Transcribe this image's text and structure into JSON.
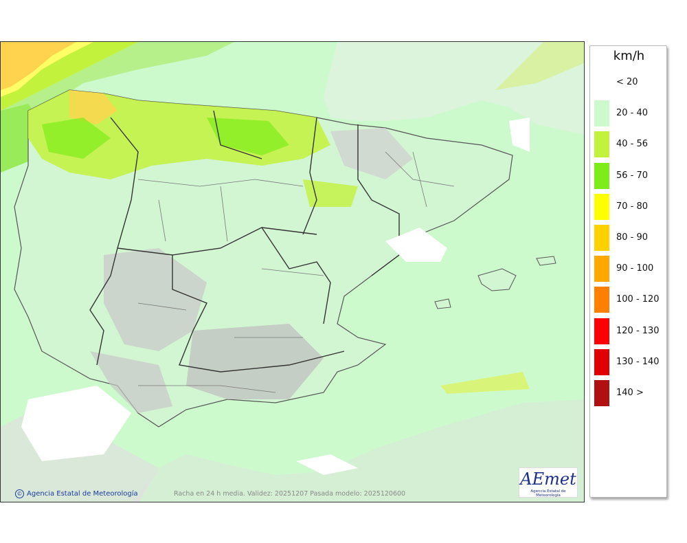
{
  "legend": {
    "title": "km/h",
    "items": [
      {
        "label": "< 20",
        "color": "#ffffff"
      },
      {
        "label": "20 - 40",
        "color": "#cdfacd"
      },
      {
        "label": "40 - 56",
        "color": "#c3f23d"
      },
      {
        "label": "56 - 70",
        "color": "#7ded1a"
      },
      {
        "label": "70 - 80",
        "color": "#ffff00"
      },
      {
        "label": "80 - 90",
        "color": "#ffd100"
      },
      {
        "label": "90 - 100",
        "color": "#ffa800"
      },
      {
        "label": "100 - 120",
        "color": "#ff7f00"
      },
      {
        "label": "120 - 130",
        "color": "#ff0000"
      },
      {
        "label": "130 - 140",
        "color": "#e00000"
      },
      {
        "label": "140 >",
        "color": "#b01010"
      }
    ]
  },
  "credit": "Agencia Estatal de Meteorología",
  "validity": "Racha en 24 h media. Validez: 20251207 Pasada modelo: 2025120600",
  "logo": {
    "text": "AEmet",
    "subtitle": "Agencia Estatal de Meteorología"
  }
}
